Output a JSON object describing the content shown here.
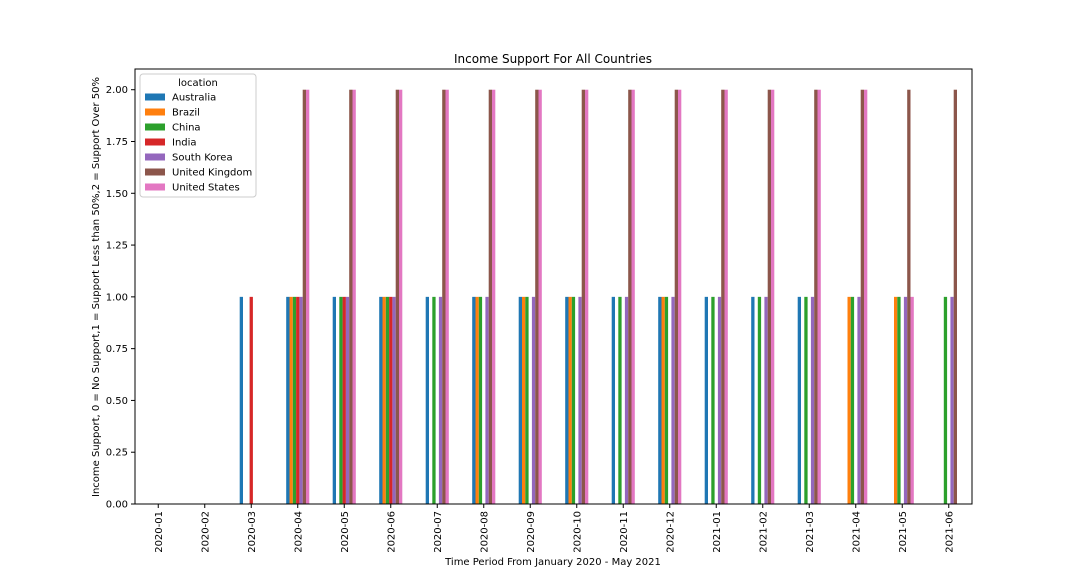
{
  "chart_data": {
    "type": "bar",
    "title": "Income Support For All Countries",
    "xlabel": "Time Period From January 2020 - May 2021",
    "ylabel": "Income Support, 0 = No Support,1 = Support Less than 50%,2 = Support Over 50%",
    "ylim": [
      0,
      2.1
    ],
    "yticks": [
      "0.00",
      "0.25",
      "0.50",
      "0.75",
      "1.00",
      "1.25",
      "1.50",
      "1.75",
      "2.00"
    ],
    "grid": false,
    "legend_title": "location",
    "legend_position": "top-left",
    "categories": [
      "2020-01",
      "2020-02",
      "2020-03",
      "2020-04",
      "2020-05",
      "2020-06",
      "2020-07",
      "2020-08",
      "2020-09",
      "2020-10",
      "2020-11",
      "2020-12",
      "2021-01",
      "2021-02",
      "2021-03",
      "2021-04",
      "2021-05",
      "2021-06"
    ],
    "series": [
      {
        "name": "Australia",
        "color": "#1f77b4",
        "values": [
          0,
          0,
          1,
          1,
          1,
          1,
          1,
          1,
          1,
          1,
          1,
          1,
          1,
          1,
          1,
          0,
          0,
          0
        ]
      },
      {
        "name": "Brazil",
        "color": "#ff7f0e",
        "values": [
          0,
          0,
          0,
          1,
          0,
          1,
          0,
          1,
          1,
          1,
          0,
          1,
          0,
          0,
          0,
          1,
          1,
          0
        ]
      },
      {
        "name": "China",
        "color": "#2ca02c",
        "values": [
          0,
          0,
          0,
          1,
          1,
          1,
          1,
          1,
          1,
          1,
          1,
          1,
          1,
          1,
          1,
          1,
          1,
          1
        ]
      },
      {
        "name": "India",
        "color": "#d62728",
        "values": [
          0,
          0,
          1,
          1,
          1,
          1,
          0,
          0,
          0,
          0,
          0,
          0,
          0,
          0,
          0,
          0,
          0,
          0
        ]
      },
      {
        "name": "South Korea",
        "color": "#9467bd",
        "values": [
          0,
          0,
          0,
          1,
          1,
          1,
          1,
          1,
          1,
          1,
          1,
          1,
          1,
          1,
          1,
          1,
          1,
          1
        ]
      },
      {
        "name": "United Kingdom",
        "color": "#8c564b",
        "values": [
          0,
          0,
          0,
          2,
          2,
          2,
          2,
          2,
          2,
          2,
          2,
          2,
          2,
          2,
          2,
          2,
          2,
          2
        ]
      },
      {
        "name": "United States",
        "color": "#e377c2",
        "values": [
          0,
          0,
          0,
          2,
          2,
          2,
          2,
          2,
          2,
          2,
          2,
          2,
          2,
          2,
          2,
          2,
          1,
          0
        ]
      }
    ]
  }
}
